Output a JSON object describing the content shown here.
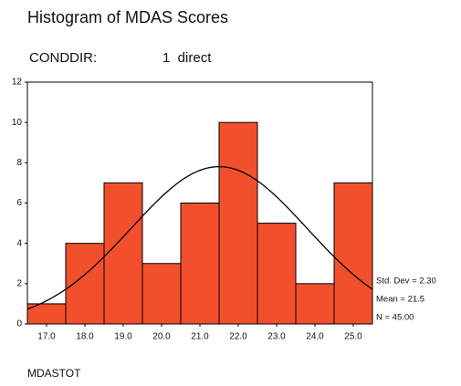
{
  "chart_data": {
    "type": "histogram",
    "title": "Histogram of MDAS Scores",
    "filter": {
      "label": "CONDDIR:",
      "value": "1  direct"
    },
    "x_label": "MDASTOT",
    "bins": [
      16.5,
      17.5,
      18.5,
      19.5,
      20.5,
      21.5,
      22.5,
      23.5,
      24.5,
      25.5
    ],
    "values": [
      1,
      4,
      7,
      3,
      6,
      10,
      5,
      2,
      7
    ],
    "color": "#f2502c",
    "xlim": [
      16.5,
      25.5
    ],
    "xticks": [
      {
        "value": 17,
        "label": "17.0"
      },
      {
        "value": 18,
        "label": "18.0"
      },
      {
        "value": 19,
        "label": "19.0"
      },
      {
        "value": 20,
        "label": "20.0"
      },
      {
        "value": 21,
        "label": "21.0"
      },
      {
        "value": 22,
        "label": "22.0"
      },
      {
        "value": 23,
        "label": "23.0"
      },
      {
        "value": 24,
        "label": "24.0"
      },
      {
        "value": 25,
        "label": "25.0"
      }
    ],
    "ylim": [
      0,
      12
    ],
    "yticks": [
      0,
      2,
      4,
      6,
      8,
      10,
      12
    ],
    "normal_curve": true,
    "stats": [
      {
        "value": 2.3,
        "label": "Std. Dev = 2.30"
      },
      {
        "value": 21.5,
        "label": "Mean = 21.5"
      },
      {
        "value": 45,
        "label": "N = 45.00"
      }
    ]
  }
}
